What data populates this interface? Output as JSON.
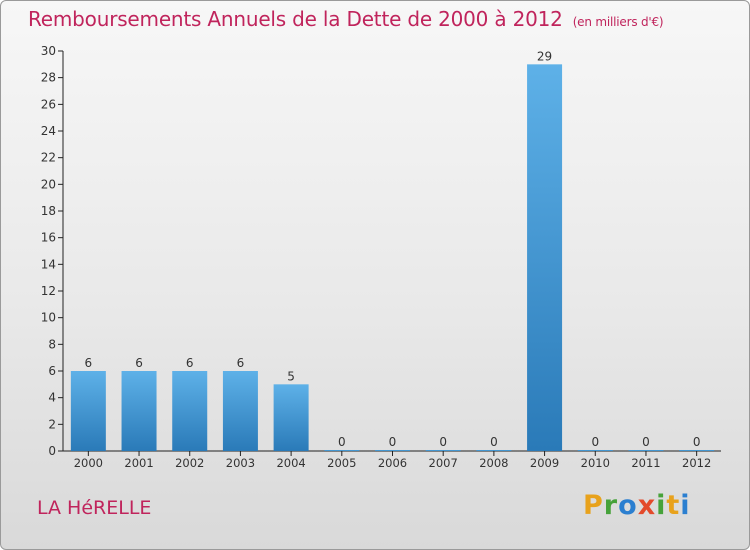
{
  "title": "Remboursements Annuels de la Dette de 2000 à 2012",
  "unit": "(en milliers d'€)",
  "commune": "LA HéRELLE",
  "logo": [
    "P",
    "r",
    "o",
    "x",
    "i",
    "t",
    "i"
  ],
  "colors": {
    "title": "#c0245c",
    "bar_top": "#5eb1e8",
    "bar_bottom": "#2a7ab8",
    "logo": [
      "#e8a21c",
      "#46a23a",
      "#2b7fd0",
      "#e34a2b",
      "#46a23a",
      "#e8a21c",
      "#2b7fd0"
    ]
  },
  "chart_data": {
    "type": "bar",
    "title": "Remboursements Annuels de la Dette de 2000 à 2012",
    "xlabel": "",
    "ylabel": "",
    "categories": [
      "2000",
      "2001",
      "2002",
      "2003",
      "2004",
      "2005",
      "2006",
      "2007",
      "2008",
      "2009",
      "2010",
      "2011",
      "2012"
    ],
    "values": [
      6,
      6,
      6,
      6,
      5,
      0,
      0,
      0,
      0,
      29,
      0,
      0,
      0
    ],
    "ylim": [
      0,
      30
    ],
    "yticks": [
      0,
      2,
      4,
      6,
      8,
      10,
      12,
      14,
      16,
      18,
      20,
      22,
      24,
      26,
      28,
      30
    ],
    "grid": false
  }
}
